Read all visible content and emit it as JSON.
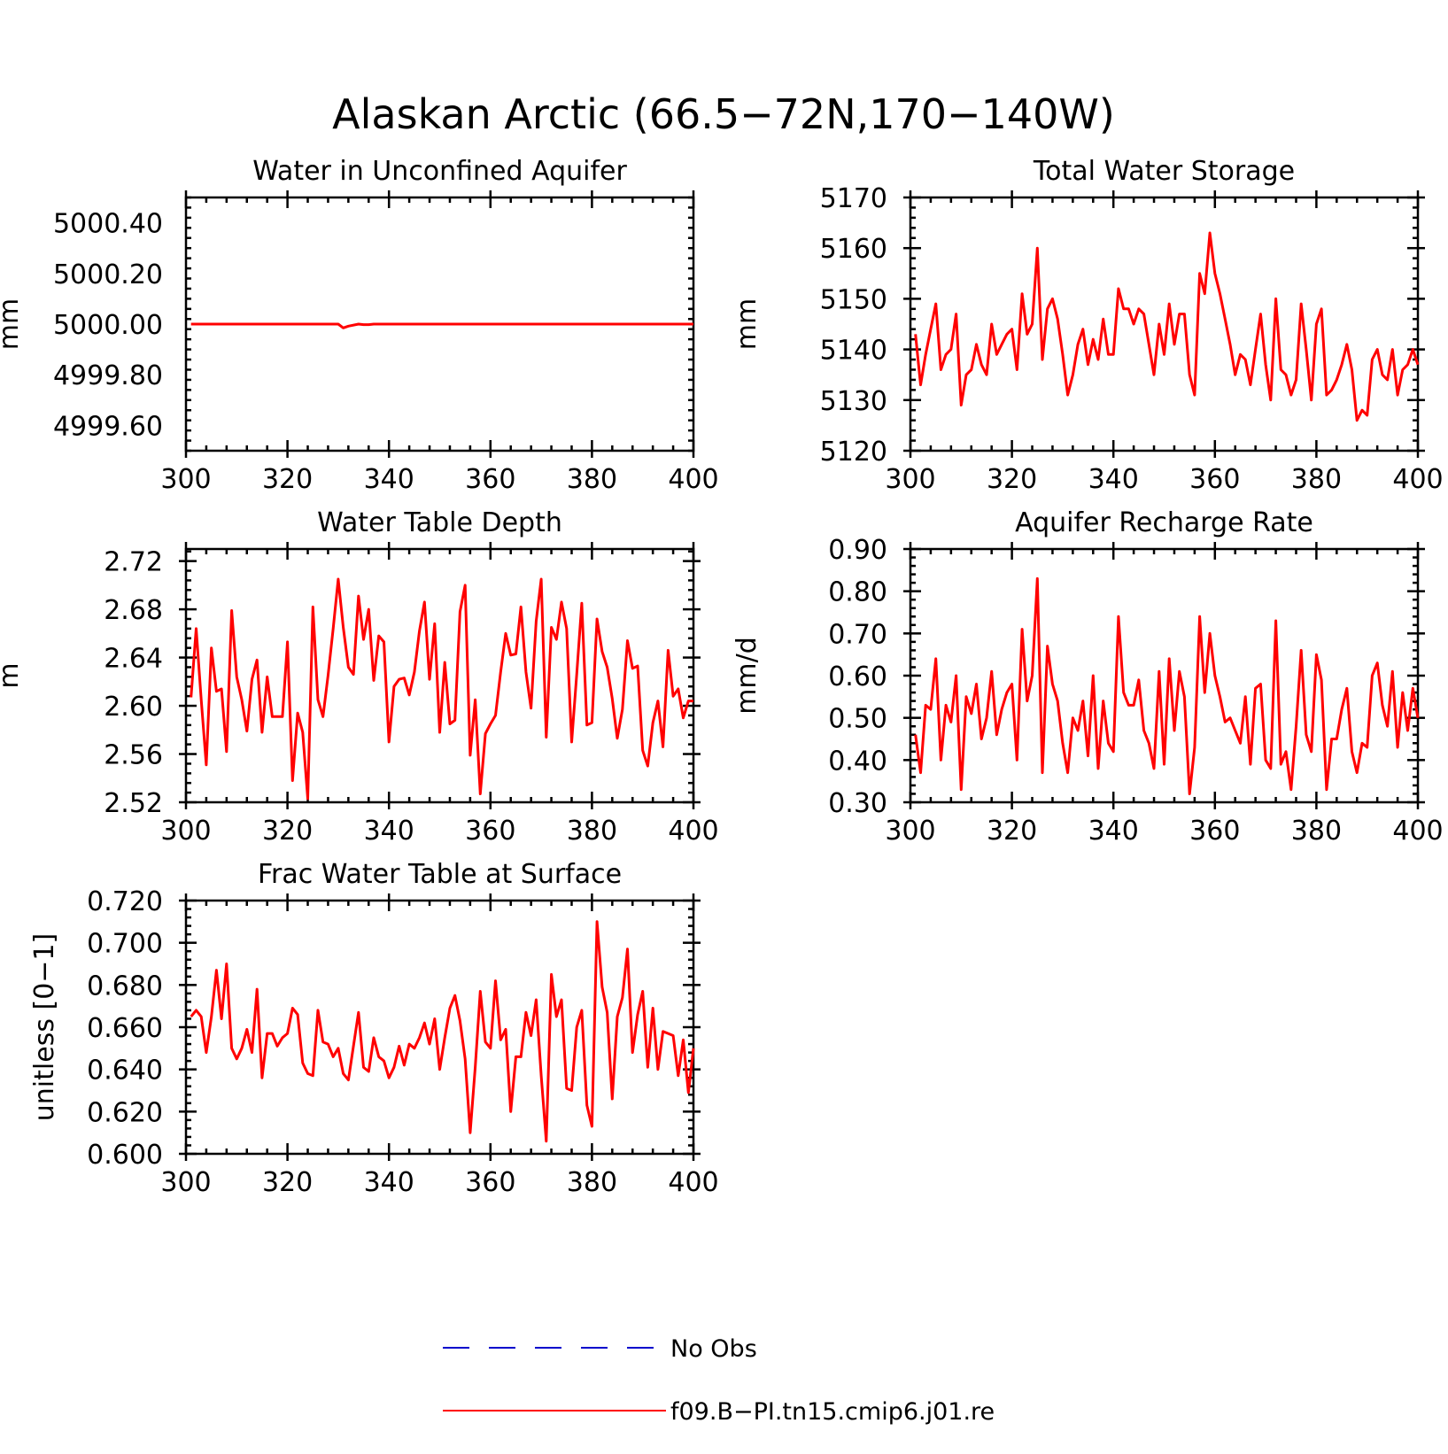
{
  "title": "Alaskan Arctic (66.5−72N,170−140W)",
  "series_colors": {
    "model": "#ff0000",
    "obs": "#0000cc"
  },
  "legend": {
    "obs_label": "No Obs",
    "model_label": "f09.B−PI.tn15.cmip6.j01.re"
  },
  "chart_data": [
    {
      "type": "line",
      "title": "Water in Unconfined Aquifer",
      "ylabel": "mm",
      "xlim": [
        300,
        400
      ],
      "ylim": [
        4999.5,
        5000.5
      ],
      "xticks": [
        "300",
        "320",
        "340",
        "360",
        "380",
        "400"
      ],
      "yticks": [
        "4999.60",
        "4999.80",
        "5000.00",
        "5000.20",
        "5000.40"
      ],
      "yticks_values": [
        4999.6,
        4999.8,
        5000.0,
        5000.2,
        5000.4
      ],
      "series": [
        {
          "x": [
            301,
            330,
            331,
            332,
            334,
            335,
            336,
            337,
            400
          ],
          "values": [
            5000.0,
            5000.0,
            4999.985,
            4999.992,
            5000.0,
            4999.998,
            4999.998,
            5000.0,
            5000.0
          ]
        }
      ]
    },
    {
      "type": "line",
      "title": "Total Water Storage",
      "ylabel": "mm",
      "xlim": [
        300,
        400
      ],
      "ylim": [
        5120,
        5170
      ],
      "xticks": [
        "300",
        "320",
        "340",
        "360",
        "380",
        "400"
      ],
      "yticks": [
        "5120",
        "5130",
        "5140",
        "5150",
        "5160",
        "5170"
      ],
      "yticks_values": [
        5120,
        5130,
        5140,
        5150,
        5160,
        5170
      ],
      "series": [
        {
          "x": [
            301,
            302,
            303,
            304,
            305,
            306,
            307,
            308,
            309,
            310,
            311,
            312,
            313,
            314,
            315,
            316,
            317,
            318,
            319,
            320,
            321,
            322,
            323,
            324,
            325,
            326,
            327,
            328,
            329,
            330,
            331,
            332,
            333,
            334,
            335,
            336,
            337,
            338,
            339,
            340,
            341,
            342,
            343,
            344,
            345,
            346,
            347,
            348,
            349,
            350,
            351,
            352,
            353,
            354,
            355,
            356,
            357,
            358,
            359,
            360,
            361,
            362,
            363,
            364,
            365,
            366,
            367,
            368,
            369,
            370,
            371,
            372,
            373,
            374,
            375,
            376,
            377,
            378,
            379,
            380,
            381,
            382,
            383,
            384,
            385,
            386,
            387,
            388,
            389,
            390,
            391,
            392,
            393,
            394,
            395,
            396,
            397,
            398,
            399,
            400
          ],
          "values": [
            5143,
            5133,
            5139,
            5144,
            5149,
            5136,
            5139,
            5140,
            5147,
            5129,
            5135,
            5136,
            5141,
            5137,
            5135,
            5145,
            5139,
            5141,
            5143,
            5144,
            5136,
            5151,
            5143,
            5145,
            5160,
            5138,
            5148,
            5150,
            5146,
            5139,
            5131,
            5135,
            5141,
            5144,
            5137,
            5142,
            5138,
            5146,
            5139,
            5139,
            5152,
            5148,
            5148,
            5145,
            5148,
            5147,
            5141,
            5135,
            5145,
            5139,
            5149,
            5141,
            5147,
            5147,
            5135,
            5131,
            5155,
            5151,
            5163,
            5155,
            5151,
            5146,
            5141,
            5135,
            5139,
            5138,
            5133,
            5140,
            5147,
            5137,
            5130,
            5150,
            5136,
            5135,
            5131,
            5134,
            5149,
            5140,
            5130,
            5145,
            5148,
            5131,
            5132,
            5134,
            5137,
            5141,
            5136,
            5126,
            5128,
            5127,
            5138,
            5140,
            5135,
            5134,
            5140,
            5131,
            5136,
            5137,
            5140,
            5137
          ]
        }
      ]
    },
    {
      "type": "line",
      "title": "Water Table Depth",
      "ylabel": "m",
      "xlim": [
        300,
        400
      ],
      "ylim": [
        2.52,
        2.73
      ],
      "xticks": [
        "300",
        "320",
        "340",
        "360",
        "380",
        "400"
      ],
      "yticks": [
        "2.52",
        "2.56",
        "2.60",
        "2.64",
        "2.68",
        "2.72"
      ],
      "yticks_values": [
        2.52,
        2.56,
        2.6,
        2.64,
        2.68,
        2.72
      ],
      "series": [
        {
          "x": [
            301,
            302,
            303,
            304,
            305,
            306,
            307,
            308,
            309,
            310,
            311,
            312,
            313,
            314,
            315,
            316,
            317,
            318,
            319,
            320,
            321,
            322,
            323,
            324,
            325,
            326,
            327,
            328,
            329,
            330,
            331,
            332,
            333,
            334,
            335,
            336,
            337,
            338,
            339,
            340,
            341,
            342,
            343,
            344,
            345,
            346,
            347,
            348,
            349,
            350,
            351,
            352,
            353,
            354,
            355,
            356,
            357,
            358,
            359,
            360,
            361,
            362,
            363,
            364,
            365,
            366,
            367,
            368,
            369,
            370,
            371,
            372,
            373,
            374,
            375,
            376,
            377,
            378,
            379,
            380,
            381,
            382,
            383,
            384,
            385,
            386,
            387,
            388,
            389,
            390,
            391,
            392,
            393,
            394,
            395,
            396,
            397,
            398,
            399,
            400
          ],
          "values": [
            2.607,
            2.664,
            2.605,
            2.551,
            2.648,
            2.612,
            2.614,
            2.562,
            2.679,
            2.624,
            2.605,
            2.579,
            2.622,
            2.638,
            2.578,
            2.624,
            2.591,
            2.591,
            2.591,
            2.653,
            2.538,
            2.594,
            2.578,
            2.523,
            2.682,
            2.605,
            2.591,
            2.625,
            2.664,
            2.705,
            2.665,
            2.632,
            2.626,
            2.691,
            2.655,
            2.68,
            2.621,
            2.658,
            2.653,
            2.57,
            2.616,
            2.622,
            2.623,
            2.609,
            2.628,
            2.662,
            2.686,
            2.622,
            2.668,
            2.578,
            2.636,
            2.585,
            2.588,
            2.678,
            2.7,
            2.559,
            2.605,
            2.527,
            2.577,
            2.585,
            2.592,
            2.628,
            2.66,
            2.642,
            2.643,
            2.682,
            2.628,
            2.598,
            2.67,
            2.705,
            2.574,
            2.665,
            2.655,
            2.686,
            2.664,
            2.57,
            2.626,
            2.685,
            2.584,
            2.586,
            2.672,
            2.645,
            2.632,
            2.606,
            2.573,
            2.597,
            2.654,
            2.631,
            2.633,
            2.563,
            2.55,
            2.586,
            2.604,
            2.566,
            2.646,
            2.608,
            2.614,
            2.59,
            2.604,
            2.604
          ]
        }
      ]
    },
    {
      "type": "line",
      "title": "Aquifer Recharge Rate",
      "ylabel": "mm/d",
      "xlim": [
        300,
        400
      ],
      "ylim": [
        0.3,
        0.9
      ],
      "xticks": [
        "300",
        "320",
        "340",
        "360",
        "380",
        "400"
      ],
      "yticks": [
        "0.30",
        "0.40",
        "0.50",
        "0.60",
        "0.70",
        "0.80",
        "0.90"
      ],
      "yticks_values": [
        0.3,
        0.4,
        0.5,
        0.6,
        0.7,
        0.8,
        0.9
      ],
      "series": [
        {
          "x": [
            301,
            302,
            303,
            304,
            305,
            306,
            307,
            308,
            309,
            310,
            311,
            312,
            313,
            314,
            315,
            316,
            317,
            318,
            319,
            320,
            321,
            322,
            323,
            324,
            325,
            326,
            327,
            328,
            329,
            330,
            331,
            332,
            333,
            334,
            335,
            336,
            337,
            338,
            339,
            340,
            341,
            342,
            343,
            344,
            345,
            346,
            347,
            348,
            349,
            350,
            351,
            352,
            353,
            354,
            355,
            356,
            357,
            358,
            359,
            360,
            361,
            362,
            363,
            364,
            365,
            366,
            367,
            368,
            369,
            370,
            371,
            372,
            373,
            374,
            375,
            376,
            377,
            378,
            379,
            380,
            381,
            382,
            383,
            384,
            385,
            386,
            387,
            388,
            389,
            390,
            391,
            392,
            393,
            394,
            395,
            396,
            397,
            398,
            399,
            400
          ],
          "values": [
            0.46,
            0.37,
            0.53,
            0.52,
            0.64,
            0.4,
            0.53,
            0.49,
            0.6,
            0.33,
            0.55,
            0.51,
            0.58,
            0.45,
            0.5,
            0.61,
            0.46,
            0.52,
            0.56,
            0.58,
            0.4,
            0.71,
            0.54,
            0.6,
            0.83,
            0.37,
            0.67,
            0.58,
            0.54,
            0.44,
            0.37,
            0.5,
            0.47,
            0.54,
            0.41,
            0.6,
            0.38,
            0.54,
            0.44,
            0.42,
            0.74,
            0.56,
            0.53,
            0.53,
            0.59,
            0.47,
            0.44,
            0.38,
            0.61,
            0.39,
            0.64,
            0.47,
            0.61,
            0.55,
            0.32,
            0.43,
            0.74,
            0.56,
            0.7,
            0.6,
            0.55,
            0.49,
            0.5,
            0.47,
            0.44,
            0.55,
            0.39,
            0.57,
            0.58,
            0.4,
            0.38,
            0.73,
            0.39,
            0.42,
            0.33,
            0.48,
            0.66,
            0.46,
            0.42,
            0.65,
            0.59,
            0.33,
            0.45,
            0.45,
            0.52,
            0.57,
            0.42,
            0.37,
            0.44,
            0.43,
            0.6,
            0.63,
            0.53,
            0.48,
            0.61,
            0.43,
            0.56,
            0.47,
            0.57,
            0.5
          ]
        }
      ]
    },
    {
      "type": "line",
      "title": "Frac Water Table at Surface",
      "ylabel": "unitless [0−1]",
      "xlim": [
        300,
        400
      ],
      "ylim": [
        0.6,
        0.72
      ],
      "xticks": [
        "300",
        "320",
        "340",
        "360",
        "380",
        "400"
      ],
      "yticks": [
        "0.600",
        "0.620",
        "0.640",
        "0.660",
        "0.680",
        "0.700",
        "0.720"
      ],
      "yticks_values": [
        0.6,
        0.62,
        0.64,
        0.66,
        0.68,
        0.7,
        0.72
      ],
      "series": [
        {
          "x": [
            301,
            302,
            303,
            304,
            305,
            306,
            307,
            308,
            309,
            310,
            311,
            312,
            313,
            314,
            315,
            316,
            317,
            318,
            319,
            320,
            321,
            322,
            323,
            324,
            325,
            326,
            327,
            328,
            329,
            330,
            331,
            332,
            333,
            334,
            335,
            336,
            337,
            338,
            339,
            340,
            341,
            342,
            343,
            344,
            345,
            346,
            347,
            348,
            349,
            350,
            351,
            352,
            353,
            354,
            355,
            356,
            357,
            358,
            359,
            360,
            361,
            362,
            363,
            364,
            365,
            366,
            367,
            368,
            369,
            370,
            371,
            372,
            373,
            374,
            375,
            376,
            377,
            378,
            379,
            380,
            381,
            382,
            383,
            384,
            385,
            386,
            387,
            388,
            389,
            390,
            391,
            392,
            393,
            394,
            395,
            396,
            397,
            398,
            399,
            400
          ],
          "values": [
            0.665,
            0.668,
            0.665,
            0.648,
            0.665,
            0.687,
            0.664,
            0.69,
            0.65,
            0.645,
            0.65,
            0.659,
            0.648,
            0.678,
            0.636,
            0.657,
            0.657,
            0.651,
            0.655,
            0.657,
            0.669,
            0.666,
            0.643,
            0.638,
            0.637,
            0.668,
            0.653,
            0.652,
            0.646,
            0.65,
            0.638,
            0.635,
            0.651,
            0.667,
            0.641,
            0.639,
            0.655,
            0.646,
            0.644,
            0.636,
            0.641,
            0.651,
            0.642,
            0.652,
            0.65,
            0.655,
            0.662,
            0.652,
            0.664,
            0.64,
            0.655,
            0.669,
            0.675,
            0.663,
            0.645,
            0.61,
            0.641,
            0.677,
            0.653,
            0.65,
            0.682,
            0.654,
            0.659,
            0.62,
            0.646,
            0.646,
            0.667,
            0.656,
            0.673,
            0.637,
            0.606,
            0.685,
            0.665,
            0.673,
            0.631,
            0.63,
            0.66,
            0.668,
            0.623,
            0.613,
            0.71,
            0.679,
            0.667,
            0.626,
            0.665,
            0.674,
            0.697,
            0.648,
            0.666,
            0.677,
            0.641,
            0.669,
            0.64,
            0.658,
            0.657,
            0.656,
            0.637,
            0.654,
            0.629,
            0.65
          ]
        }
      ]
    }
  ]
}
